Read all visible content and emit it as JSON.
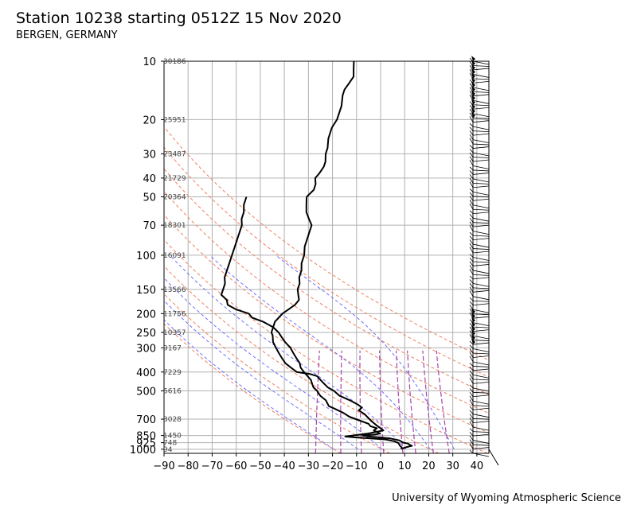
{
  "title": "Station 10238 starting 0512Z 15 Nov 2020",
  "subtitle": "BERGEN, GERMANY",
  "footer": "University of Wyoming Atmospheric Science",
  "chart_data": {
    "type": "line",
    "chart_kind": "skew-T log-p sounding",
    "xlabel": "",
    "ylabel": "",
    "xlim": [
      -90,
      45
    ],
    "ylim": [
      1050,
      10
    ],
    "y_scale": "log",
    "x_ticks": [
      -90,
      -80,
      -70,
      -60,
      -50,
      -40,
      -30,
      -20,
      -10,
      0,
      10,
      20,
      30,
      40
    ],
    "x_tick_labels": [
      "−90",
      "−80",
      "−70",
      "−60",
      "−50",
      "−40",
      "−30",
      "−20",
      "−10",
      "0",
      "10",
      "20",
      "30",
      "40"
    ],
    "y_ticks": [
      10,
      20,
      30,
      40,
      50,
      70,
      100,
      150,
      200,
      250,
      300,
      400,
      500,
      700,
      850,
      925,
      1000
    ],
    "height_labels": [
      {
        "p": 10,
        "text": "30186"
      },
      {
        "p": 20,
        "text": "25951"
      },
      {
        "p": 30,
        "text": "23487"
      },
      {
        "p": 40,
        "text": "21729"
      },
      {
        "p": 50,
        "text": "20364"
      },
      {
        "p": 70,
        "text": "18301"
      },
      {
        "p": 100,
        "text": "16091"
      },
      {
        "p": 150,
        "text": "13566"
      },
      {
        "p": 200,
        "text": "11756"
      },
      {
        "p": 250,
        "text": "10357"
      },
      {
        "p": 300,
        "text": "9167"
      },
      {
        "p": 400,
        "text": "7229"
      },
      {
        "p": 500,
        "text": "5616"
      },
      {
        "p": 700,
        "text": "3028"
      },
      {
        "p": 850,
        "text": "1450"
      },
      {
        "p": 925,
        "text": "748"
      },
      {
        "p": 1000,
        "text": "94"
      }
    ],
    "grid": true,
    "series": [
      {
        "role": "temperature",
        "color": "#000000",
        "points": [
          [
            1000,
            8.5
          ],
          [
            990,
            8.5
          ],
          [
            975,
            10
          ],
          [
            960,
            12
          ],
          [
            950,
            11
          ],
          [
            935,
            10
          ],
          [
            925,
            8
          ],
          [
            900,
            6
          ],
          [
            880,
            2
          ],
          [
            870,
            -2
          ],
          [
            860,
            -7
          ],
          [
            850,
            -10
          ],
          [
            840,
            -5
          ],
          [
            830,
            -3
          ],
          [
            800,
            -6
          ],
          [
            780,
            -5
          ],
          [
            760,
            -8
          ],
          [
            740,
            -9
          ],
          [
            700,
            -15
          ],
          [
            680,
            -18
          ],
          [
            650,
            -21
          ],
          [
            620,
            -25
          ],
          [
            600,
            -28
          ],
          [
            560,
            -30
          ],
          [
            530,
            -33
          ],
          [
            500,
            -35
          ],
          [
            480,
            -37
          ],
          [
            460,
            -38
          ],
          [
            440,
            -39
          ],
          [
            420,
            -41
          ],
          [
            400,
            -43
          ],
          [
            380,
            -45
          ],
          [
            360,
            -46
          ],
          [
            340,
            -48
          ],
          [
            320,
            -50
          ],
          [
            300,
            -52
          ],
          [
            280,
            -55
          ],
          [
            265,
            -57
          ],
          [
            250,
            -59
          ],
          [
            235,
            -62
          ],
          [
            220,
            -67
          ],
          [
            210,
            -72
          ],
          [
            200,
            -74
          ],
          [
            190,
            -80
          ],
          [
            180,
            -84
          ],
          [
            170,
            -85
          ],
          [
            160,
            -88
          ],
          [
            150,
            -88
          ],
          [
            140,
            -88
          ],
          [
            130,
            -89
          ],
          [
            120,
            -89
          ],
          [
            110,
            -89
          ],
          [
            100,
            -89
          ],
          [
            90,
            -89
          ],
          [
            80,
            -89
          ],
          [
            70,
            -89
          ],
          [
            65,
            -90
          ],
          [
            60,
            -90
          ],
          [
            55,
            -91
          ],
          [
            50,
            -91
          ]
        ]
      },
      {
        "role": "temperature",
        "color": "#000000",
        "points": [
          [
            50,
            -66
          ],
          [
            55,
            -65
          ],
          [
            60,
            -64
          ],
          [
            65,
            -62
          ],
          [
            70,
            -60
          ],
          [
            75,
            -60
          ],
          [
            80,
            -60
          ],
          [
            90,
            -60
          ],
          [
            100,
            -59
          ],
          [
            110,
            -59
          ],
          [
            120,
            -58
          ],
          [
            130,
            -58
          ],
          [
            140,
            -57
          ],
          [
            150,
            -57
          ],
          [
            160,
            -56
          ],
          [
            170,
            -55
          ],
          [
            180,
            -56
          ],
          [
            190,
            -58
          ],
          [
            200,
            -60
          ],
          [
            210,
            -61
          ],
          [
            220,
            -62
          ],
          [
            230,
            -62
          ],
          [
            240,
            -62
          ],
          [
            250,
            -62
          ],
          [
            260,
            -61
          ],
          [
            280,
            -60
          ],
          [
            300,
            -58
          ],
          [
            320,
            -56
          ],
          [
            340,
            -54
          ],
          [
            360,
            -52
          ],
          [
            380,
            -49
          ],
          [
            400,
            -46
          ],
          [
            410,
            -40
          ],
          [
            420,
            -37
          ],
          [
            440,
            -35
          ],
          [
            460,
            -33
          ],
          [
            480,
            -31
          ],
          [
            500,
            -28
          ],
          [
            530,
            -25
          ],
          [
            560,
            -20
          ],
          [
            590,
            -16
          ],
          [
            610,
            -14
          ],
          [
            630,
            -15
          ],
          [
            660,
            -12
          ],
          [
            690,
            -10
          ],
          [
            720,
            -8
          ],
          [
            760,
            -5
          ],
          [
            800,
            -2
          ],
          [
            830,
            -8
          ],
          [
            850,
            -14
          ],
          [
            860,
            -17
          ],
          [
            870,
            -12
          ],
          [
            890,
            0
          ],
          [
            910,
            4
          ],
          [
            930,
            6
          ],
          [
            960,
            7
          ],
          [
            980,
            8
          ],
          [
            1000,
            8
          ]
        ]
      },
      {
        "role": "temperature",
        "color": "#000000",
        "points": [
          [
            10,
            -65
          ],
          [
            11,
            -64
          ],
          [
            12,
            -63
          ],
          [
            13,
            -64
          ],
          [
            14,
            -65
          ],
          [
            15,
            -65
          ],
          [
            17,
            -64
          ],
          [
            20,
            -64
          ],
          [
            22,
            -65
          ],
          [
            25,
            -65
          ],
          [
            28,
            -64
          ],
          [
            30,
            -64
          ],
          [
            33,
            -63
          ],
          [
            35,
            -63
          ],
          [
            38,
            -64
          ],
          [
            40,
            -65
          ],
          [
            43,
            -64
          ],
          [
            46,
            -64
          ],
          [
            50,
            -66
          ]
        ]
      }
    ],
    "dry_adiabats": [
      -20,
      0,
      20,
      40,
      60,
      80,
      100,
      120,
      140
    ],
    "moist_adiabats": [
      -20,
      -10,
      0,
      10,
      20,
      30
    ],
    "mixing_ratios": [
      0.4,
      1,
      2,
      4,
      7,
      10,
      16,
      24
    ],
    "colors": {
      "sounding": "#000000",
      "dry_adiabat": "#f08060",
      "moist_adiabat": "#7070ff",
      "mixing_ratio": "#aa44aa",
      "grid": "#b0b0b0"
    }
  }
}
